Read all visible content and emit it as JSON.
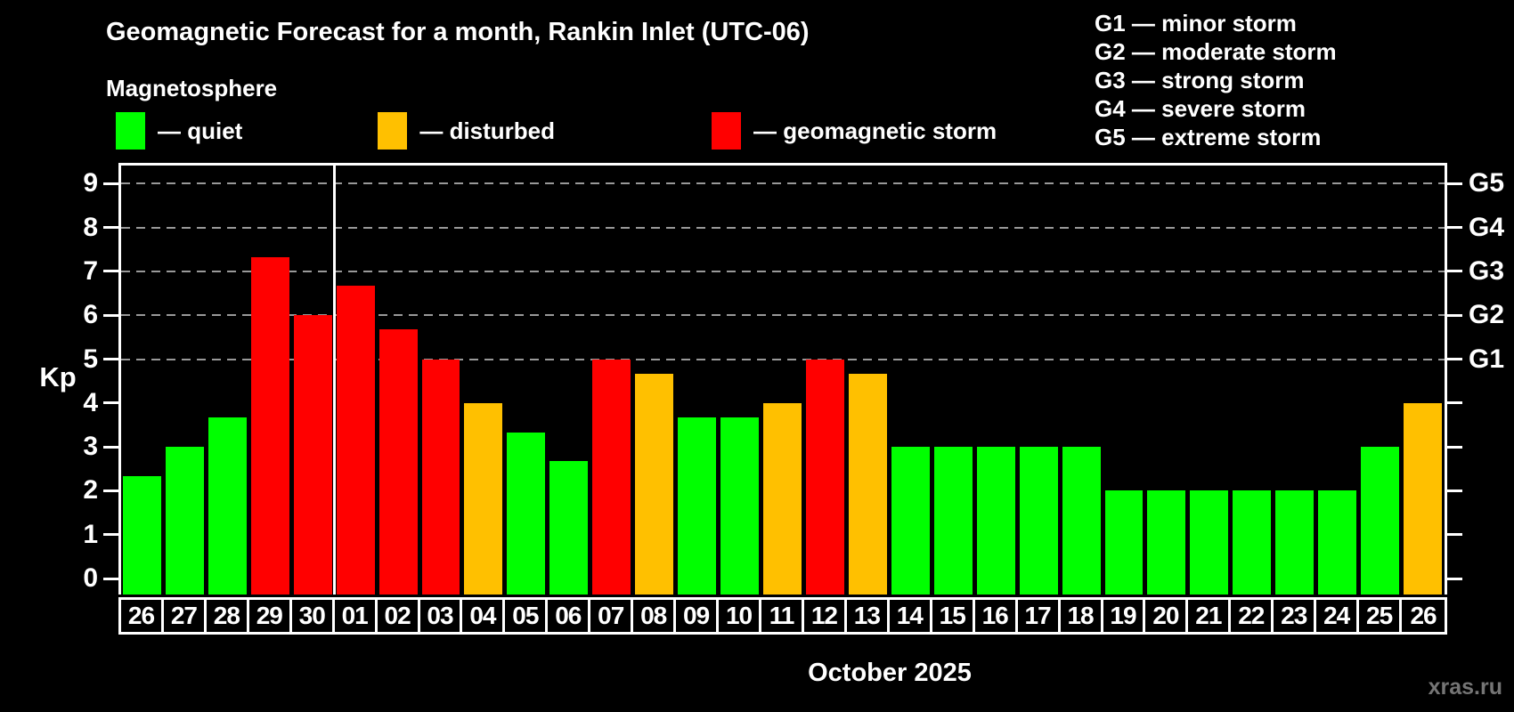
{
  "header": {
    "title": "Geomagnetic Forecast for a month, Rankin Inlet (UTC-06)",
    "subtitle": "Magnetosphere"
  },
  "legend": {
    "items": [
      {
        "name": "quiet",
        "label": "— quiet",
        "color": "#00ff00"
      },
      {
        "name": "disturbed",
        "label": "— disturbed",
        "color": "#ffc000"
      },
      {
        "name": "storm",
        "label": "— geomagnetic storm",
        "color": "#ff0000"
      }
    ]
  },
  "storm_scale_legend": {
    "items": [
      {
        "label": "G1 — minor storm"
      },
      {
        "label": "G2 — moderate storm"
      },
      {
        "label": "G3 — strong storm"
      },
      {
        "label": "G4 — severe storm"
      },
      {
        "label": "G5 — extreme storm"
      }
    ]
  },
  "footer": {
    "month_label": "October 2025",
    "watermark": "xras.ru"
  },
  "chart_data": {
    "type": "bar",
    "title": "Geomagnetic Forecast for a month, Rankin Inlet (UTC-06)",
    "xlabel": "October 2025",
    "ylabel": "Kp",
    "ylim": [
      0,
      9
    ],
    "yticks": [
      0,
      1,
      2,
      3,
      4,
      5,
      6,
      7,
      8,
      9
    ],
    "gridlines_kp": [
      5,
      6,
      7,
      8,
      9
    ],
    "grid_style": "dashed gray horizontal lines at storm thresholds only",
    "legend_position": "top-left",
    "right_labels": [
      {
        "text": "G1",
        "kp": 5
      },
      {
        "text": "G2",
        "kp": 6
      },
      {
        "text": "G3",
        "kp": 7
      },
      {
        "text": "G4",
        "kp": 8
      },
      {
        "text": "G5",
        "kp": 9
      }
    ],
    "status_colors": {
      "quiet": "#00ff00",
      "disturbed": "#ffc000",
      "storm": "#ff0000"
    },
    "month_separator_after_index": 4,
    "bars": [
      {
        "day": "26",
        "kp": 2.33,
        "status": "quiet"
      },
      {
        "day": "27",
        "kp": 3.0,
        "status": "quiet"
      },
      {
        "day": "28",
        "kp": 3.67,
        "status": "quiet"
      },
      {
        "day": "29",
        "kp": 7.33,
        "status": "storm"
      },
      {
        "day": "30",
        "kp": 6.0,
        "status": "storm"
      },
      {
        "day": "01",
        "kp": 6.67,
        "status": "storm"
      },
      {
        "day": "02",
        "kp": 5.67,
        "status": "storm"
      },
      {
        "day": "03",
        "kp": 5.0,
        "status": "storm"
      },
      {
        "day": "04",
        "kp": 4.0,
        "status": "disturbed"
      },
      {
        "day": "05",
        "kp": 3.33,
        "status": "quiet"
      },
      {
        "day": "06",
        "kp": 2.67,
        "status": "quiet"
      },
      {
        "day": "07",
        "kp": 5.0,
        "status": "storm"
      },
      {
        "day": "08",
        "kp": 4.67,
        "status": "disturbed"
      },
      {
        "day": "09",
        "kp": 3.67,
        "status": "quiet"
      },
      {
        "day": "10",
        "kp": 3.67,
        "status": "quiet"
      },
      {
        "day": "11",
        "kp": 4.0,
        "status": "disturbed"
      },
      {
        "day": "12",
        "kp": 5.0,
        "status": "storm"
      },
      {
        "day": "13",
        "kp": 4.67,
        "status": "disturbed"
      },
      {
        "day": "14",
        "kp": 3.0,
        "status": "quiet"
      },
      {
        "day": "15",
        "kp": 3.0,
        "status": "quiet"
      },
      {
        "day": "16",
        "kp": 3.0,
        "status": "quiet"
      },
      {
        "day": "17",
        "kp": 3.0,
        "status": "quiet"
      },
      {
        "day": "18",
        "kp": 3.0,
        "status": "quiet"
      },
      {
        "day": "19",
        "kp": 2.0,
        "status": "quiet"
      },
      {
        "day": "20",
        "kp": 2.0,
        "status": "quiet"
      },
      {
        "day": "21",
        "kp": 2.0,
        "status": "quiet"
      },
      {
        "day": "22",
        "kp": 2.0,
        "status": "quiet"
      },
      {
        "day": "23",
        "kp": 2.0,
        "status": "quiet"
      },
      {
        "day": "24",
        "kp": 2.0,
        "status": "quiet"
      },
      {
        "day": "25",
        "kp": 3.0,
        "status": "quiet"
      },
      {
        "day": "26",
        "kp": 4.0,
        "status": "disturbed"
      }
    ]
  }
}
